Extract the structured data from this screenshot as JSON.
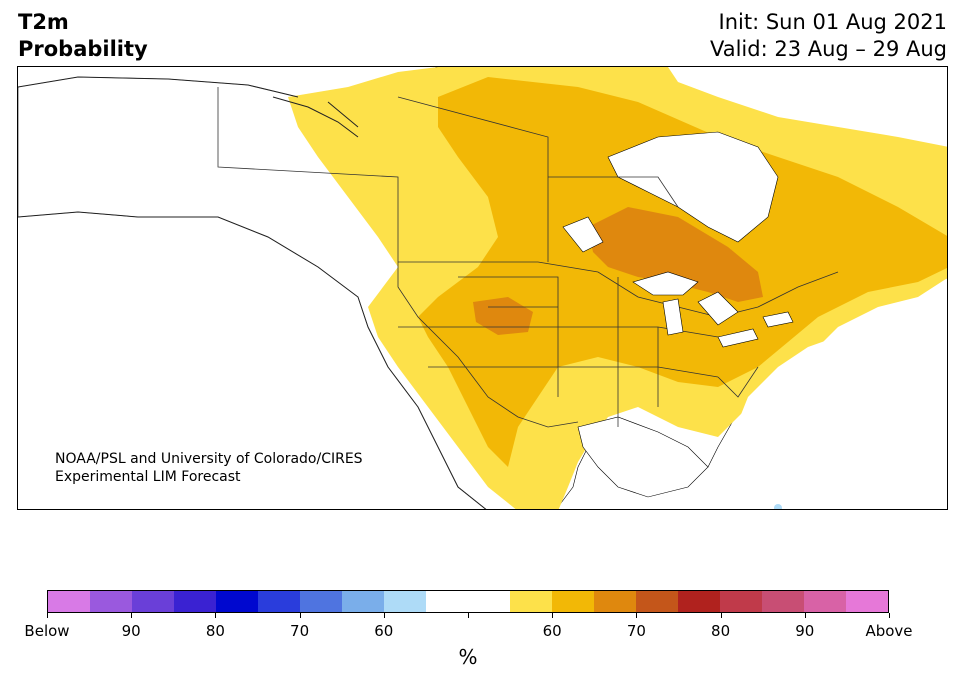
{
  "title": {
    "variable": "T2m",
    "type": "Probability",
    "init": "Init: Sun 01 Aug 2021",
    "valid": "Valid: 23 Aug – 29 Aug"
  },
  "credit": {
    "line1": "NOAA/PSL and University of Colorado/CIRES",
    "line2": "Experimental LIM Forecast"
  },
  "colorbar": {
    "unit": "%",
    "colors": [
      "#d87ae6",
      "#9a59de",
      "#6a3fd8",
      "#3a22d2",
      "#0008cf",
      "#2a3ddc",
      "#4f74e0",
      "#7aaeea",
      "#aedbf7",
      "#ffffff",
      "#ffffff",
      "#fde14a",
      "#f2b806",
      "#df880e",
      "#c4561a",
      "#b0221e",
      "#c03a4a",
      "#c84e74",
      "#d862a6",
      "#e678d8"
    ],
    "labels": [
      "Below",
      "90",
      "80",
      "70",
      "60",
      "",
      "60",
      "70",
      "80",
      "90",
      "Above"
    ]
  },
  "legend_colors": {
    "above_50_60": "#fde14a",
    "above_60_70": "#f2b806",
    "above_70_80": "#df880e"
  }
}
